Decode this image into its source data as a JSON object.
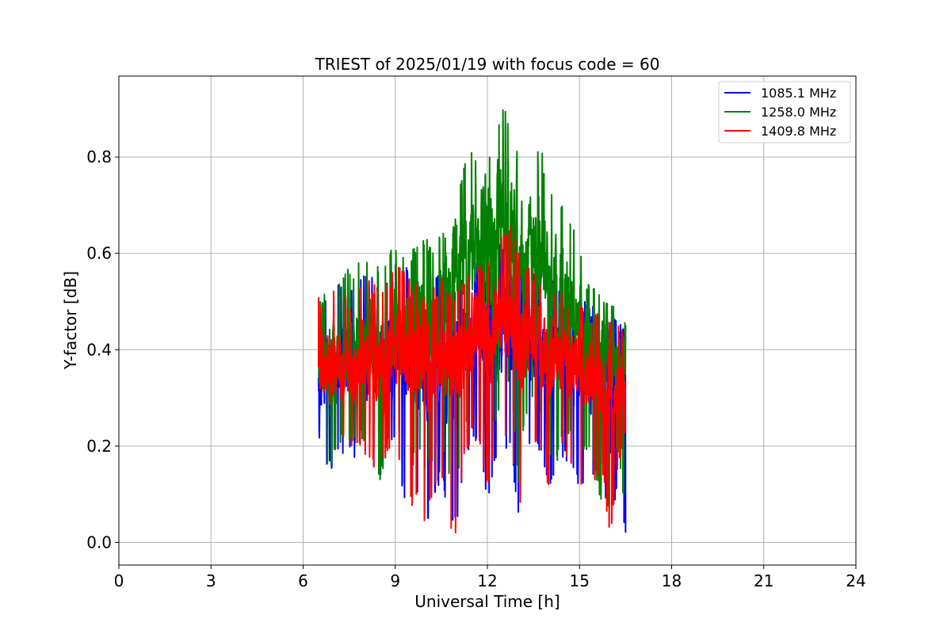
{
  "chart_data": {
    "type": "line",
    "title": "TRIEST of 2025/01/19 with focus code = 60",
    "xlabel": "Universal Time [h]",
    "ylabel": "Y-factor [dB]",
    "xlim": [
      0,
      24
    ],
    "ylim": [
      -0.047,
      0.968
    ],
    "xticks": [
      0,
      3,
      6,
      9,
      12,
      15,
      18,
      21,
      24
    ],
    "xtick_labels": [
      "0",
      "3",
      "6",
      "9",
      "12",
      "15",
      "18",
      "21",
      "24"
    ],
    "yticks": [
      0.0,
      0.2,
      0.4,
      0.6,
      0.8
    ],
    "ytick_labels": [
      "0.0",
      "0.2",
      "0.4",
      "0.6",
      "0.8"
    ],
    "grid": true,
    "legend_position": "top-right",
    "series": [
      {
        "name": "1085.1 MHz",
        "color": "#0000ff",
        "x": [
          6.5,
          6.75,
          7.0,
          7.25,
          7.5,
          7.75,
          8.0,
          8.25,
          8.5,
          8.75,
          9.0,
          9.25,
          9.5,
          9.75,
          10.0,
          10.25,
          10.5,
          10.75,
          11.0,
          11.25,
          11.5,
          11.75,
          12.0,
          12.25,
          12.5,
          12.75,
          13.0,
          13.25,
          13.5,
          13.75,
          14.0,
          14.25,
          14.5,
          14.75,
          15.0,
          15.25,
          15.5,
          15.75,
          16.0,
          16.25,
          16.5
        ],
        "mean": [
          0.36,
          0.35,
          0.36,
          0.37,
          0.37,
          0.38,
          0.38,
          0.38,
          0.37,
          0.38,
          0.4,
          0.4,
          0.39,
          0.38,
          0.37,
          0.36,
          0.36,
          0.38,
          0.4,
          0.42,
          0.44,
          0.45,
          0.44,
          0.43,
          0.44,
          0.46,
          0.43,
          0.4,
          0.4,
          0.39,
          0.38,
          0.38,
          0.38,
          0.37,
          0.36,
          0.34,
          0.33,
          0.32,
          0.3,
          0.33,
          0.34
        ],
        "max": [
          0.48,
          0.52,
          0.54,
          0.53,
          0.52,
          0.54,
          0.56,
          0.55,
          0.54,
          0.56,
          0.58,
          0.59,
          0.57,
          0.55,
          0.54,
          0.55,
          0.56,
          0.54,
          0.55,
          0.57,
          0.58,
          0.59,
          0.58,
          0.6,
          0.63,
          0.65,
          0.62,
          0.58,
          0.57,
          0.56,
          0.55,
          0.54,
          0.53,
          0.52,
          0.51,
          0.5,
          0.49,
          0.48,
          0.47,
          0.46,
          0.46
        ],
        "min": [
          0.22,
          0.14,
          0.16,
          0.18,
          0.17,
          0.18,
          0.17,
          0.15,
          0.12,
          0.18,
          0.2,
          0.09,
          0.06,
          0.08,
          0.02,
          0.08,
          0.13,
          0.04,
          0.03,
          0.14,
          0.22,
          0.19,
          0.08,
          0.16,
          0.18,
          0.2,
          0.04,
          0.18,
          0.2,
          0.18,
          0.1,
          0.15,
          0.18,
          0.14,
          0.1,
          0.13,
          0.12,
          0.14,
          0.0,
          0.14,
          0.0
        ]
      },
      {
        "name": "1258.0 MHz",
        "color": "#008000",
        "x": [
          6.5,
          6.75,
          7.0,
          7.25,
          7.5,
          7.75,
          8.0,
          8.25,
          8.5,
          8.75,
          9.0,
          9.25,
          9.5,
          9.75,
          10.0,
          10.25,
          10.5,
          10.75,
          11.0,
          11.25,
          11.5,
          11.75,
          12.0,
          12.25,
          12.5,
          12.75,
          13.0,
          13.25,
          13.5,
          13.75,
          14.0,
          14.25,
          14.5,
          14.75,
          15.0,
          15.25,
          15.5,
          15.75,
          16.0,
          16.25,
          16.5
        ],
        "mean": [
          0.37,
          0.37,
          0.38,
          0.39,
          0.4,
          0.41,
          0.42,
          0.42,
          0.41,
          0.42,
          0.44,
          0.45,
          0.45,
          0.45,
          0.45,
          0.46,
          0.47,
          0.5,
          0.54,
          0.58,
          0.62,
          0.64,
          0.63,
          0.64,
          0.66,
          0.68,
          0.63,
          0.61,
          0.6,
          0.58,
          0.55,
          0.52,
          0.5,
          0.47,
          0.44,
          0.41,
          0.39,
          0.38,
          0.37,
          0.39,
          0.4
        ],
        "max": [
          0.5,
          0.54,
          0.56,
          0.55,
          0.57,
          0.58,
          0.59,
          0.58,
          0.57,
          0.6,
          0.62,
          0.6,
          0.61,
          0.63,
          0.63,
          0.62,
          0.66,
          0.64,
          0.7,
          0.81,
          0.82,
          0.8,
          0.78,
          0.85,
          0.92,
          0.88,
          0.8,
          0.84,
          0.8,
          0.83,
          0.73,
          0.71,
          0.73,
          0.68,
          0.63,
          0.55,
          0.53,
          0.52,
          0.51,
          0.5,
          0.57
        ],
        "min": [
          0.2,
          0.14,
          0.17,
          0.2,
          0.2,
          0.21,
          0.2,
          0.18,
          0.11,
          0.2,
          0.23,
          0.2,
          0.14,
          0.18,
          0.12,
          0.18,
          0.22,
          0.12,
          0.1,
          0.22,
          0.31,
          0.28,
          0.2,
          0.25,
          0.28,
          0.33,
          0.12,
          0.26,
          0.28,
          0.26,
          0.18,
          0.16,
          0.22,
          0.2,
          0.16,
          0.18,
          0.15,
          0.05,
          0.05,
          0.2,
          0.05
        ]
      },
      {
        "name": "1409.8 MHz",
        "color": "#ff0000",
        "x": [
          6.5,
          6.75,
          7.0,
          7.25,
          7.5,
          7.75,
          8.0,
          8.25,
          8.5,
          8.75,
          9.0,
          9.25,
          9.5,
          9.75,
          10.0,
          10.25,
          10.5,
          10.75,
          11.0,
          11.25,
          11.5,
          11.75,
          12.0,
          12.25,
          12.5,
          12.75,
          13.0,
          13.25,
          13.5,
          13.75,
          14.0,
          14.25,
          14.5,
          14.75,
          15.0,
          15.25,
          15.5,
          15.75,
          16.0,
          16.25,
          16.5
        ],
        "mean": [
          0.36,
          0.36,
          0.37,
          0.37,
          0.38,
          0.38,
          0.39,
          0.39,
          0.38,
          0.38,
          0.4,
          0.4,
          0.4,
          0.39,
          0.38,
          0.37,
          0.37,
          0.38,
          0.39,
          0.41,
          0.43,
          0.44,
          0.44,
          0.44,
          0.46,
          0.47,
          0.44,
          0.42,
          0.41,
          0.4,
          0.39,
          0.39,
          0.38,
          0.38,
          0.37,
          0.35,
          0.34,
          0.33,
          0.3,
          0.33,
          0.35
        ],
        "max": [
          0.52,
          0.52,
          0.53,
          0.52,
          0.51,
          0.53,
          0.55,
          0.54,
          0.53,
          0.55,
          0.57,
          0.58,
          0.55,
          0.53,
          0.52,
          0.53,
          0.55,
          0.53,
          0.54,
          0.56,
          0.58,
          0.58,
          0.58,
          0.61,
          0.64,
          0.66,
          0.62,
          0.58,
          0.56,
          0.55,
          0.54,
          0.53,
          0.52,
          0.51,
          0.5,
          0.49,
          0.48,
          0.47,
          0.46,
          0.45,
          0.45
        ],
        "min": [
          0.24,
          0.15,
          0.18,
          0.2,
          0.19,
          0.19,
          0.18,
          0.16,
          0.13,
          0.19,
          0.21,
          0.12,
          0.07,
          0.1,
          0.02,
          0.1,
          0.14,
          0.04,
          0.0,
          0.16,
          0.23,
          0.2,
          0.1,
          0.17,
          0.19,
          0.22,
          0.04,
          0.19,
          0.21,
          0.19,
          0.11,
          0.16,
          0.19,
          0.15,
          0.11,
          0.14,
          0.13,
          0.14,
          0.0,
          0.15,
          0.22
        ]
      }
    ]
  }
}
